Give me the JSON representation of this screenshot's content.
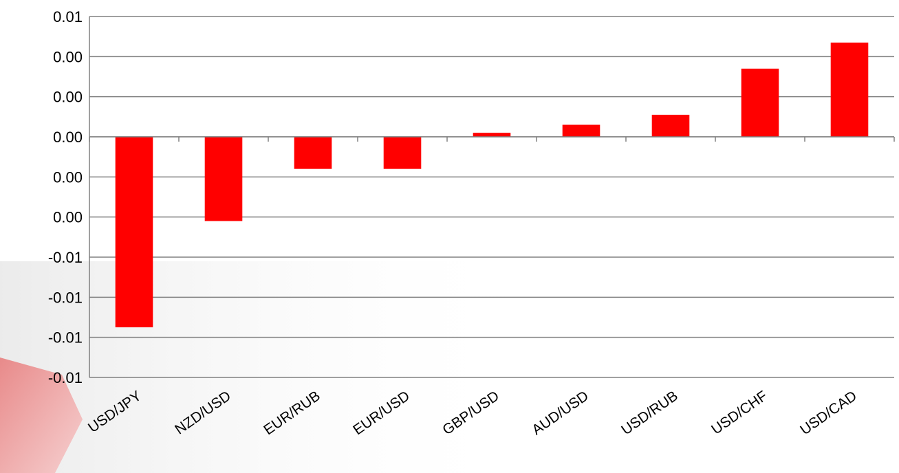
{
  "chart_data": {
    "type": "bar",
    "title": "",
    "xlabel": "",
    "ylabel": "",
    "categories": [
      "USD/JPY",
      "NZD/USD",
      "EUR/RUB",
      "EUR/USD",
      "GBP/USD",
      "AUD/USD",
      "USD/RUB",
      "USD/CHF",
      "USD/CAD"
    ],
    "values": [
      -0.0095,
      -0.0042,
      -0.0016,
      -0.0016,
      0.0002,
      0.0006,
      0.0011,
      0.0034,
      0.0047
    ],
    "ylim": [
      -0.012,
      0.006
    ],
    "yticks": [
      -0.012,
      -0.01,
      -0.008,
      -0.006,
      -0.004,
      -0.002,
      0.0,
      0.002,
      0.004,
      0.006
    ],
    "ytick_labels": [
      "-0.01",
      "-0.01",
      "-0.01",
      "-0.01",
      "0.00",
      "0.00",
      "0.00",
      "0.00",
      "0.00",
      "0.01"
    ],
    "grid": true,
    "legend": "none",
    "bar_color": "#ff0000",
    "grid_color": "#808080"
  }
}
